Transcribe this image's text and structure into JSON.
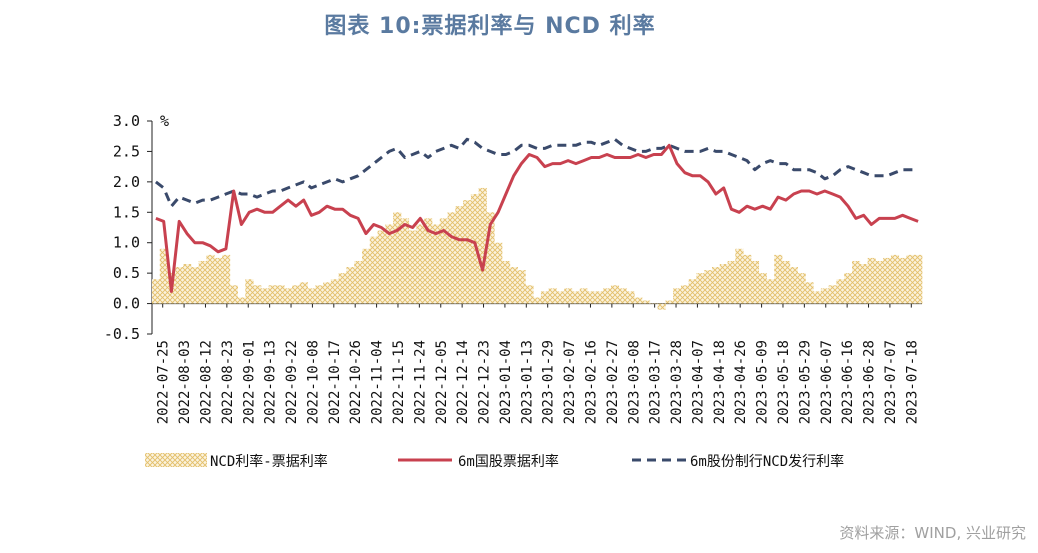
{
  "title": "图表 10:票据利率与 NCD 利率",
  "source": "资料来源：WIND, 兴业研究",
  "chart_data": {
    "type": "line",
    "unit_label": "%",
    "ylim": [
      -0.5,
      3.0
    ],
    "yticks": [
      "3.0",
      "2.5",
      "2.0",
      "1.5",
      "1.0",
      "0.5",
      "0.0",
      "-0.5"
    ],
    "ytick_values": [
      3.0,
      2.5,
      2.0,
      1.5,
      1.0,
      0.5,
      0.0,
      -0.5
    ],
    "grid": false,
    "legend_position": "bottom",
    "x_tick_labels": [
      "2022-07-25",
      "2022-08-03",
      "2022-08-12",
      "2022-08-23",
      "2022-09-01",
      "2022-09-13",
      "2022-09-22",
      "2022-10-08",
      "2022-10-17",
      "2022-10-26",
      "2022-11-04",
      "2022-11-15",
      "2022-11-24",
      "2022-12-05",
      "2022-12-14",
      "2022-12-23",
      "2023-01-04",
      "2023-01-13",
      "2023-01-29",
      "2023-02-07",
      "2023-02-16",
      "2023-02-27",
      "2023-03-08",
      "2023-03-17",
      "2023-03-28",
      "2023-04-07",
      "2023-04-18",
      "2023-04-26",
      "2023-05-09",
      "2023-05-18",
      "2023-05-29",
      "2023-06-07",
      "2023-06-16",
      "2023-06-28",
      "2023-07-07",
      "2023-07-18"
    ],
    "series": [
      {
        "name": "NCD利率-票据利率",
        "kind": "area",
        "color": "#e8c77a",
        "values": [
          0.4,
          0.9,
          0.5,
          0.6,
          0.65,
          0.6,
          0.7,
          0.8,
          0.75,
          0.8,
          0.3,
          0.1,
          0.4,
          0.3,
          0.25,
          0.3,
          0.3,
          0.25,
          0.3,
          0.35,
          0.25,
          0.3,
          0.35,
          0.4,
          0.5,
          0.6,
          0.7,
          0.9,
          1.1,
          1.2,
          1.3,
          1.5,
          1.4,
          1.2,
          1.3,
          1.4,
          1.3,
          1.4,
          1.5,
          1.6,
          1.7,
          1.8,
          1.9,
          1.5,
          1.0,
          0.7,
          0.6,
          0.55,
          0.3,
          0.1,
          0.2,
          0.25,
          0.2,
          0.25,
          0.2,
          0.25,
          0.2,
          0.2,
          0.25,
          0.3,
          0.25,
          0.2,
          0.1,
          0.05,
          0,
          -0.1,
          0.05,
          0.25,
          0.3,
          0.4,
          0.5,
          0.55,
          0.6,
          0.65,
          0.7,
          0.9,
          0.8,
          0.7,
          0.5,
          0.4,
          0.8,
          0.7,
          0.6,
          0.5,
          0.35,
          0.2,
          0.25,
          0.3,
          0.4,
          0.5,
          0.7,
          0.65,
          0.75,
          0.7,
          0.75,
          0.8,
          0.75,
          0.8,
          0.8
        ]
      },
      {
        "name": "6m国股票据利率",
        "kind": "line",
        "color": "#c8414f",
        "values": [
          1.4,
          1.35,
          0.2,
          1.35,
          1.15,
          1.0,
          1.0,
          0.95,
          0.85,
          0.9,
          1.85,
          1.3,
          1.5,
          1.55,
          1.5,
          1.5,
          1.6,
          1.7,
          1.6,
          1.7,
          1.45,
          1.5,
          1.6,
          1.55,
          1.55,
          1.45,
          1.4,
          1.15,
          1.3,
          1.25,
          1.15,
          1.2,
          1.3,
          1.25,
          1.4,
          1.2,
          1.15,
          1.2,
          1.1,
          1.05,
          1.05,
          1.0,
          0.55,
          1.3,
          1.5,
          1.8,
          2.1,
          2.3,
          2.45,
          2.4,
          2.25,
          2.3,
          2.3,
          2.35,
          2.3,
          2.35,
          2.4,
          2.4,
          2.45,
          2.4,
          2.4,
          2.4,
          2.45,
          2.4,
          2.45,
          2.45,
          2.6,
          2.3,
          2.15,
          2.1,
          2.1,
          2.0,
          1.8,
          1.9,
          1.55,
          1.5,
          1.6,
          1.55,
          1.6,
          1.55,
          1.75,
          1.7,
          1.8,
          1.85,
          1.85,
          1.8,
          1.85,
          1.8,
          1.75,
          1.6,
          1.4,
          1.45,
          1.3,
          1.4,
          1.4,
          1.4,
          1.45,
          1.4,
          1.35
        ]
      },
      {
        "name": "6m股份制行NCD发行利率",
        "kind": "dashed",
        "color": "#3a4a6b",
        "values": [
          2.0,
          1.9,
          1.6,
          1.75,
          1.7,
          1.65,
          1.7,
          1.7,
          1.75,
          1.8,
          1.85,
          1.8,
          1.8,
          1.75,
          1.8,
          1.85,
          1.85,
          1.9,
          1.95,
          2.0,
          1.9,
          1.95,
          2.0,
          2.05,
          2.0,
          2.05,
          2.1,
          2.2,
          2.3,
          2.4,
          2.5,
          2.55,
          2.4,
          2.45,
          2.5,
          2.4,
          2.5,
          2.55,
          2.6,
          2.55,
          2.7,
          2.65,
          2.55,
          2.5,
          2.45,
          2.45,
          2.5,
          2.6,
          2.6,
          2.55,
          2.55,
          2.6,
          2.6,
          2.6,
          2.6,
          2.65,
          2.65,
          2.6,
          2.65,
          2.7,
          2.6,
          2.55,
          2.5,
          2.5,
          2.55,
          2.55,
          2.6,
          2.55,
          2.5,
          2.5,
          2.5,
          2.55,
          2.5,
          2.5,
          2.45,
          2.4,
          2.35,
          2.2,
          2.3,
          2.35,
          2.3,
          2.3,
          2.2,
          2.2,
          2.2,
          2.15,
          2.05,
          2.1,
          2.2,
          2.25,
          2.2,
          2.15,
          2.1,
          2.1,
          2.1,
          2.15,
          2.2,
          2.2,
          2.2
        ]
      }
    ]
  }
}
